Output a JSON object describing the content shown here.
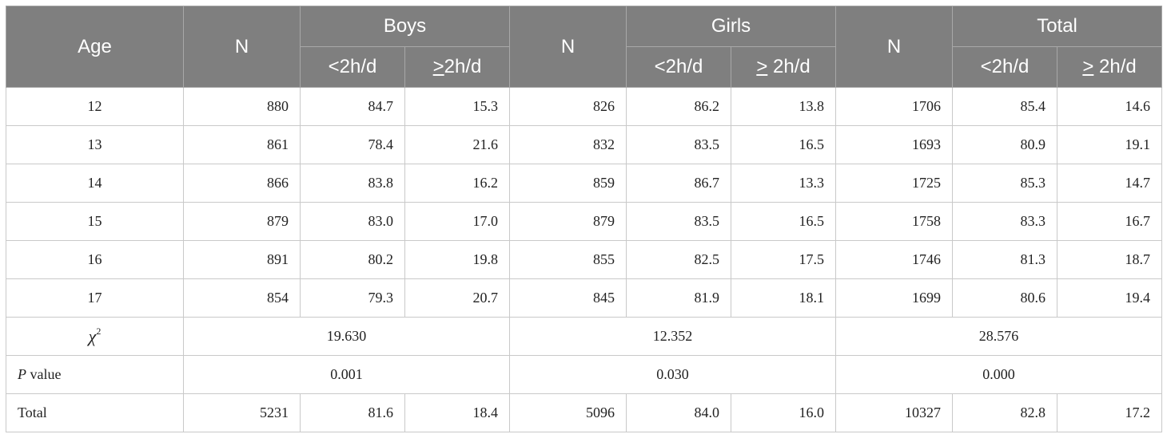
{
  "header": {
    "age": "Age",
    "n_boys": "N",
    "boys": "Boys",
    "n_girls": "N",
    "girls": "Girls",
    "n_total": "N",
    "total": "Total",
    "boys_lt": "<2h/d",
    "boys_ge_sym": ">",
    "boys_ge_rest": "2h/d",
    "girls_lt": "<2h/d",
    "girls_ge_sym": ">",
    "girls_ge_rest": " 2h/d",
    "total_lt": "<2h/d",
    "total_ge_sym": ">",
    "total_ge_rest": " 2h/d"
  },
  "rows": [
    {
      "age": "12",
      "boys_n": "880",
      "boys_lt": "84.7",
      "boys_ge": "15.3",
      "girls_n": "826",
      "girls_lt": "86.2",
      "girls_ge": "13.8",
      "total_n": "1706",
      "total_lt": "85.4",
      "total_ge": "14.6"
    },
    {
      "age": "13",
      "boys_n": "861",
      "boys_lt": "78.4",
      "boys_ge": "21.6",
      "girls_n": "832",
      "girls_lt": "83.5",
      "girls_ge": "16.5",
      "total_n": "1693",
      "total_lt": "80.9",
      "total_ge": "19.1"
    },
    {
      "age": "14",
      "boys_n": "866",
      "boys_lt": "83.8",
      "boys_ge": "16.2",
      "girls_n": "859",
      "girls_lt": "86.7",
      "girls_ge": "13.3",
      "total_n": "1725",
      "total_lt": "85.3",
      "total_ge": "14.7"
    },
    {
      "age": "15",
      "boys_n": "879",
      "boys_lt": "83.0",
      "boys_ge": "17.0",
      "girls_n": "879",
      "girls_lt": "83.5",
      "girls_ge": "16.5",
      "total_n": "1758",
      "total_lt": "83.3",
      "total_ge": "16.7"
    },
    {
      "age": "16",
      "boys_n": "891",
      "boys_lt": "80.2",
      "boys_ge": "19.8",
      "girls_n": "855",
      "girls_lt": "82.5",
      "girls_ge": "17.5",
      "total_n": "1746",
      "total_lt": "81.3",
      "total_ge": "18.7"
    },
    {
      "age": "17",
      "boys_n": "854",
      "boys_lt": "79.3",
      "boys_ge": "20.7",
      "girls_n": "845",
      "girls_lt": "81.9",
      "girls_ge": "18.1",
      "total_n": "1699",
      "total_lt": "80.6",
      "total_ge": "19.4"
    }
  ],
  "chi_square": {
    "symbol": "χ",
    "superscript": "2",
    "boys": "19.630",
    "girls": "12.352",
    "total": "28.576"
  },
  "p_value": {
    "label_italic": "P",
    "label_rest": " value",
    "boys": "0.001",
    "girls": "0.030",
    "total": "0.000"
  },
  "totals": {
    "label": "Total",
    "boys_n": "5231",
    "boys_lt": "81.6",
    "boys_ge": "18.4",
    "girls_n": "5096",
    "girls_lt": "84.0",
    "girls_ge": "16.0",
    "total_n": "10327",
    "total_lt": "82.8",
    "total_ge": "17.2"
  }
}
